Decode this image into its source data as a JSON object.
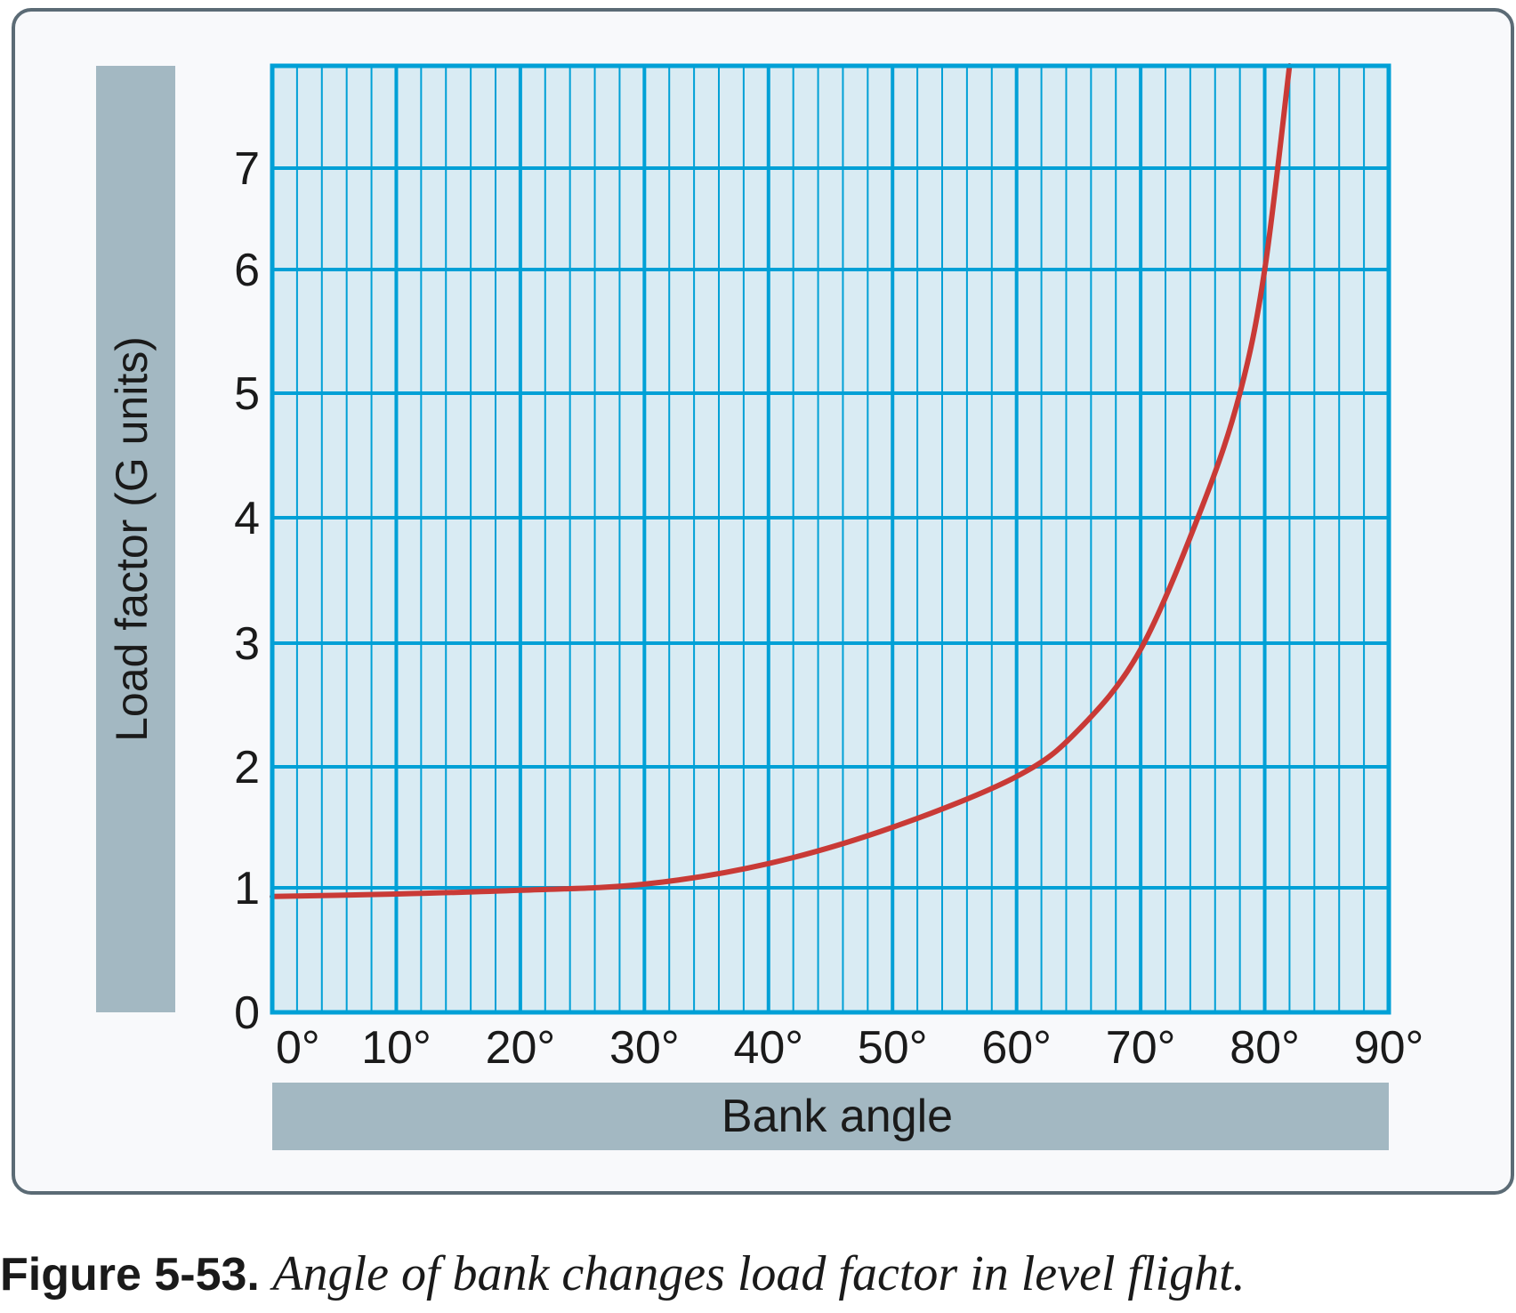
{
  "chart_data": {
    "type": "line",
    "title": "",
    "xlabel": "Bank angle",
    "ylabel": "Load factor (G units)",
    "x_ticks": [
      "0°",
      "10°",
      "20°",
      "30°",
      "40°",
      "50°",
      "60°",
      "70°",
      "80°",
      "90°"
    ],
    "y_ticks": [
      "0",
      "1",
      "2",
      "3",
      "4",
      "5",
      "6",
      "7"
    ],
    "xlim": [
      0,
      90
    ],
    "ylim": [
      0,
      8
    ],
    "grid": true,
    "series": [
      {
        "name": "Load factor",
        "color": "#c93a36",
        "x": [
          0,
          10,
          20,
          30,
          40,
          50,
          60,
          65,
          70,
          75,
          78,
          80,
          82
        ],
        "y": [
          0.93,
          0.95,
          0.98,
          1.03,
          1.2,
          1.5,
          1.92,
          2.3,
          2.95,
          4.1,
          5.0,
          6.0,
          8.0
        ]
      }
    ]
  },
  "caption": {
    "label": "Figure 5-53.",
    "text": "Angle of bank changes load factor in level flight."
  }
}
